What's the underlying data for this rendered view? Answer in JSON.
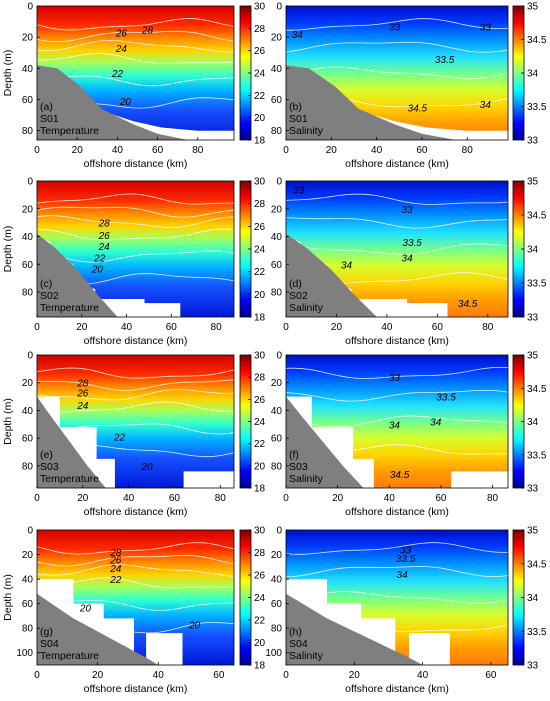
{
  "colormaps": {
    "jet": [
      "#00008f",
      "#0000ff",
      "#0080ff",
      "#00ffff",
      "#80ff80",
      "#ffff00",
      "#ff8000",
      "#ff0000",
      "#800000"
    ],
    "contour_line": "#ffffff",
    "bathymetry_fill": "#7f7f7f",
    "axis_color": "#000000"
  },
  "chart_data": [
    {
      "type": "heatmap",
      "id": "a",
      "label": "(a)",
      "station": "S01",
      "variable": "Temperature",
      "xlabel": "offshore distance (km)",
      "ylabel": "Depth (m)",
      "xlim": [
        0,
        98
      ],
      "ylim": [
        0,
        86
      ],
      "xticks": [
        "0",
        "20",
        "40",
        "60",
        "80"
      ],
      "xtick_values": [
        0,
        20,
        40,
        60,
        80
      ],
      "yticks": [
        "0",
        "20",
        "40",
        "60",
        "80"
      ],
      "ytick_values": [
        0,
        20,
        40,
        60,
        80
      ],
      "clim": [
        18,
        30
      ],
      "cbar_ticks": [
        "18",
        "20",
        "22",
        "24",
        "26",
        "28",
        "30"
      ],
      "cbar_tick_values": [
        18,
        20,
        22,
        24,
        26,
        28,
        30
      ],
      "contour_labels": [
        {
          "text": "28",
          "x": 55,
          "y": 15
        },
        {
          "text": "26",
          "x": 42,
          "y": 17
        },
        {
          "text": "24",
          "x": 42,
          "y": 27
        },
        {
          "text": "22",
          "x": 40,
          "y": 43
        },
        {
          "text": "20",
          "x": 44,
          "y": 61
        }
      ],
      "bathymetry": [
        [
          0,
          38
        ],
        [
          10,
          40
        ],
        [
          22,
          52
        ],
        [
          32,
          66
        ],
        [
          48,
          76
        ],
        [
          60,
          82
        ],
        [
          75,
          86
        ],
        [
          0,
          86
        ]
      ],
      "mask": [
        [
          0,
          38
        ],
        [
          10,
          40
        ],
        [
          10,
          45
        ],
        [
          22,
          52
        ],
        [
          22,
          58
        ],
        [
          34,
          68
        ],
        [
          48,
          74
        ],
        [
          62,
          78
        ],
        [
          80,
          80
        ],
        [
          98,
          80
        ],
        [
          98,
          86
        ],
        [
          0,
          86
        ]
      ]
    },
    {
      "type": "heatmap",
      "id": "b",
      "label": "(b)",
      "station": "S01",
      "variable": "Salinity",
      "xlabel": "offshore distance (km)",
      "ylabel": "",
      "xlim": [
        0,
        98
      ],
      "ylim": [
        0,
        86
      ],
      "xticks": [
        "0",
        "20",
        "40",
        "60",
        "80"
      ],
      "xtick_values": [
        0,
        20,
        40,
        60,
        80
      ],
      "yticks": [
        "0",
        "20",
        "40",
        "60",
        "80"
      ],
      "ytick_values": [
        0,
        20,
        40,
        60,
        80
      ],
      "clim": [
        33,
        35
      ],
      "cbar_ticks": [
        "33",
        "33.5",
        "34",
        "34.5",
        "35"
      ],
      "cbar_tick_values": [
        33,
        33.5,
        34,
        34.5,
        35
      ],
      "contour_labels": [
        {
          "text": "34",
          "x": 5,
          "y": 18
        },
        {
          "text": "33",
          "x": 48,
          "y": 13
        },
        {
          "text": "33.5",
          "x": 70,
          "y": 34
        },
        {
          "text": "34.5",
          "x": 58,
          "y": 65
        },
        {
          "text": "34",
          "x": 88,
          "y": 63
        },
        {
          "text": "33",
          "x": 88,
          "y": 13
        }
      ],
      "bathymetry": [
        [
          0,
          38
        ],
        [
          10,
          40
        ],
        [
          22,
          52
        ],
        [
          32,
          66
        ],
        [
          48,
          76
        ],
        [
          60,
          82
        ],
        [
          75,
          86
        ],
        [
          0,
          86
        ]
      ],
      "mask": [
        [
          0,
          38
        ],
        [
          10,
          40
        ],
        [
          10,
          45
        ],
        [
          22,
          52
        ],
        [
          22,
          58
        ],
        [
          34,
          68
        ],
        [
          48,
          74
        ],
        [
          62,
          78
        ],
        [
          80,
          80
        ],
        [
          98,
          80
        ],
        [
          98,
          86
        ],
        [
          0,
          86
        ]
      ]
    },
    {
      "type": "heatmap",
      "id": "c",
      "label": "(c)",
      "station": "S02",
      "variable": "Temperature",
      "xlabel": "offshore distance (km)",
      "ylabel": "Depth (m)",
      "xlim": [
        0,
        88
      ],
      "ylim": [
        0,
        98
      ],
      "xticks": [
        "0",
        "20",
        "40",
        "60",
        "80"
      ],
      "xtick_values": [
        0,
        20,
        40,
        60,
        80
      ],
      "yticks": [
        "0",
        "20",
        "40",
        "60",
        "80"
      ],
      "ytick_values": [
        0,
        20,
        40,
        60,
        80
      ],
      "clim": [
        18,
        30
      ],
      "cbar_ticks": [
        "18",
        "20",
        "22",
        "24",
        "26",
        "28",
        "30"
      ],
      "cbar_tick_values": [
        18,
        20,
        22,
        24,
        26,
        28,
        30
      ],
      "contour_labels": [
        {
          "text": "28",
          "x": 30,
          "y": 30
        },
        {
          "text": "26",
          "x": 30,
          "y": 39
        },
        {
          "text": "24",
          "x": 30,
          "y": 47
        },
        {
          "text": "22",
          "x": 28,
          "y": 55
        },
        {
          "text": "20",
          "x": 27,
          "y": 63
        }
      ],
      "bathymetry": [
        [
          0,
          38
        ],
        [
          8,
          48
        ],
        [
          18,
          64
        ],
        [
          26,
          80
        ],
        [
          36,
          98
        ],
        [
          0,
          98
        ]
      ],
      "mask": [
        [
          0,
          40
        ],
        [
          6,
          44
        ],
        [
          6,
          54
        ],
        [
          16,
          60
        ],
        [
          16,
          72
        ],
        [
          26,
          78
        ],
        [
          26,
          85
        ],
        [
          48,
          85
        ],
        [
          48,
          88
        ],
        [
          64,
          88
        ],
        [
          64,
          98
        ],
        [
          0,
          98
        ]
      ]
    },
    {
      "type": "heatmap",
      "id": "d",
      "label": "(d)",
      "station": "S02",
      "variable": "Salinity",
      "xlabel": "offshore distance (km)",
      "ylabel": "",
      "xlim": [
        0,
        88
      ],
      "ylim": [
        0,
        98
      ],
      "xticks": [
        "0",
        "20",
        "40",
        "60",
        "80"
      ],
      "xtick_values": [
        0,
        20,
        40,
        60,
        80
      ],
      "yticks": [
        "0",
        "20",
        "40",
        "60",
        "80"
      ],
      "ytick_values": [
        0,
        20,
        40,
        60,
        80
      ],
      "clim": [
        33,
        35
      ],
      "cbar_ticks": [
        "33",
        "33.5",
        "34",
        "34.5",
        "35"
      ],
      "cbar_tick_values": [
        33,
        33.5,
        34,
        34.5,
        35
      ],
      "contour_labels": [
        {
          "text": "33",
          "x": 48,
          "y": 20
        },
        {
          "text": "33",
          "x": 5,
          "y": 6
        },
        {
          "text": "33.5",
          "x": 50,
          "y": 44
        },
        {
          "text": "34",
          "x": 48,
          "y": 55
        },
        {
          "text": "34",
          "x": 24,
          "y": 60
        },
        {
          "text": "34.5",
          "x": 72,
          "y": 88
        }
      ],
      "bathymetry": [
        [
          0,
          38
        ],
        [
          8,
          48
        ],
        [
          18,
          64
        ],
        [
          26,
          80
        ],
        [
          36,
          98
        ],
        [
          0,
          98
        ]
      ],
      "mask": [
        [
          0,
          40
        ],
        [
          6,
          44
        ],
        [
          6,
          54
        ],
        [
          16,
          60
        ],
        [
          16,
          72
        ],
        [
          26,
          78
        ],
        [
          26,
          85
        ],
        [
          48,
          85
        ],
        [
          48,
          88
        ],
        [
          64,
          88
        ],
        [
          64,
          98
        ],
        [
          0,
          98
        ]
      ]
    },
    {
      "type": "heatmap",
      "id": "e",
      "label": "(e)",
      "station": "S03",
      "variable": "Temperature",
      "xlabel": "offshore distance (km)",
      "ylabel": "Depth (m)",
      "xlim": [
        0,
        86
      ],
      "ylim": [
        0,
        96
      ],
      "xticks": [
        "0",
        "20",
        "40",
        "60",
        "80"
      ],
      "xtick_values": [
        0,
        20,
        40,
        60,
        80
      ],
      "yticks": [
        "0",
        "20",
        "40",
        "60",
        "80"
      ],
      "ytick_values": [
        0,
        20,
        40,
        60,
        80
      ],
      "clim": [
        18,
        30
      ],
      "cbar_ticks": [
        "18",
        "20",
        "22",
        "24",
        "26",
        "28",
        "30"
      ],
      "cbar_tick_values": [
        18,
        20,
        22,
        24,
        26,
        28,
        30
      ],
      "contour_labels": [
        {
          "text": "28",
          "x": 20,
          "y": 20
        },
        {
          "text": "26",
          "x": 20,
          "y": 27
        },
        {
          "text": "24",
          "x": 20,
          "y": 36
        },
        {
          "text": "22",
          "x": 36,
          "y": 59
        },
        {
          "text": "20",
          "x": 48,
          "y": 80
        }
      ],
      "bathymetry": [
        [
          0,
          30
        ],
        [
          6,
          44
        ],
        [
          14,
          62
        ],
        [
          22,
          80
        ],
        [
          30,
          96
        ],
        [
          0,
          96
        ]
      ],
      "mask": [
        [
          0,
          30
        ],
        [
          10,
          30
        ],
        [
          10,
          52
        ],
        [
          26,
          52
        ],
        [
          26,
          75
        ],
        [
          34,
          75
        ],
        [
          34,
          96
        ],
        [
          0,
          96
        ]
      ],
      "mask2": [
        [
          64,
          84
        ],
        [
          86,
          84
        ],
        [
          86,
          96
        ],
        [
          64,
          96
        ]
      ]
    },
    {
      "type": "heatmap",
      "id": "f",
      "label": "(f)",
      "station": "S03",
      "variable": "Salinity",
      "xlabel": "offshore distance (km)",
      "ylabel": "",
      "xlim": [
        0,
        86
      ],
      "ylim": [
        0,
        96
      ],
      "xticks": [
        "0",
        "20",
        "40",
        "60",
        "80"
      ],
      "xtick_values": [
        0,
        20,
        40,
        60,
        80
      ],
      "yticks": [
        "0",
        "20",
        "40",
        "60",
        "80"
      ],
      "ytick_values": [
        0,
        20,
        40,
        60,
        80
      ],
      "clim": [
        33,
        35
      ],
      "cbar_ticks": [
        "33",
        "33.5",
        "34",
        "34.5",
        "35"
      ],
      "cbar_tick_values": [
        33,
        33.5,
        34,
        34.5,
        35
      ],
      "contour_labels": [
        {
          "text": "33",
          "x": 42,
          "y": 16
        },
        {
          "text": "33.5",
          "x": 62,
          "y": 30
        },
        {
          "text": "34",
          "x": 42,
          "y": 50
        },
        {
          "text": "34",
          "x": 58,
          "y": 48
        },
        {
          "text": "34.5",
          "x": 44,
          "y": 86
        }
      ],
      "bathymetry": [
        [
          0,
          30
        ],
        [
          6,
          44
        ],
        [
          14,
          62
        ],
        [
          22,
          80
        ],
        [
          30,
          96
        ],
        [
          0,
          96
        ]
      ],
      "mask": [
        [
          0,
          30
        ],
        [
          10,
          30
        ],
        [
          10,
          52
        ],
        [
          26,
          52
        ],
        [
          26,
          75
        ],
        [
          34,
          75
        ],
        [
          34,
          96
        ],
        [
          0,
          96
        ]
      ],
      "mask2": [
        [
          64,
          84
        ],
        [
          86,
          84
        ],
        [
          86,
          96
        ],
        [
          64,
          96
        ]
      ]
    },
    {
      "type": "heatmap",
      "id": "g",
      "label": "(g)",
      "station": "S04",
      "variable": "Temperature",
      "xlabel": "offshore distance (km)",
      "ylabel": "Depth (m)",
      "xlim": [
        0,
        65
      ],
      "ylim": [
        0,
        110
      ],
      "xticks": [
        "0",
        "20",
        "40",
        "60"
      ],
      "xtick_values": [
        0,
        20,
        40,
        60
      ],
      "yticks": [
        "0",
        "20",
        "40",
        "60",
        "80",
        "100"
      ],
      "ytick_values": [
        0,
        20,
        40,
        60,
        80,
        100
      ],
      "clim": [
        18,
        30
      ],
      "cbar_ticks": [
        "18",
        "20",
        "22",
        "24",
        "26",
        "28",
        "30"
      ],
      "cbar_tick_values": [
        18,
        20,
        22,
        24,
        26,
        28,
        30
      ],
      "contour_labels": [
        {
          "text": "28",
          "x": 26,
          "y": 18
        },
        {
          "text": "26",
          "x": 26,
          "y": 24
        },
        {
          "text": "24",
          "x": 26,
          "y": 31
        },
        {
          "text": "22",
          "x": 26,
          "y": 40
        },
        {
          "text": "20",
          "x": 16,
          "y": 63
        },
        {
          "text": "20",
          "x": 52,
          "y": 77
        }
      ],
      "bathymetry": [
        [
          0,
          52
        ],
        [
          12,
          72
        ],
        [
          24,
          88
        ],
        [
          36,
          104
        ],
        [
          40,
          110
        ],
        [
          0,
          110
        ]
      ],
      "mask": [
        [
          0,
          40
        ],
        [
          12,
          40
        ],
        [
          12,
          60
        ],
        [
          22,
          60
        ],
        [
          22,
          72
        ],
        [
          32,
          72
        ],
        [
          32,
          110
        ],
        [
          0,
          110
        ]
      ],
      "mask2": [
        [
          36,
          84
        ],
        [
          48,
          84
        ],
        [
          48,
          110
        ],
        [
          36,
          110
        ]
      ]
    },
    {
      "type": "heatmap",
      "id": "h",
      "label": "(h)",
      "station": "S04",
      "variable": "Salinity",
      "xlabel": "offshore distance (km)",
      "ylabel": "",
      "xlim": [
        0,
        65
      ],
      "ylim": [
        0,
        110
      ],
      "xticks": [
        "0",
        "20",
        "40",
        "60"
      ],
      "xtick_values": [
        0,
        20,
        40,
        60
      ],
      "yticks": [
        "0",
        "20",
        "40",
        "60",
        "80",
        "100"
      ],
      "ytick_values": [
        0,
        20,
        40,
        60,
        80,
        100
      ],
      "clim": [
        33,
        35
      ],
      "cbar_ticks": [
        "33",
        "33.5",
        "34",
        "34.5",
        "35"
      ],
      "cbar_tick_values": [
        33,
        33.5,
        34,
        34.5,
        35
      ],
      "contour_labels": [
        {
          "text": "33",
          "x": 35,
          "y": 16
        },
        {
          "text": "33.5",
          "x": 35,
          "y": 23
        },
        {
          "text": "34",
          "x": 34,
          "y": 36
        }
      ],
      "bathymetry": [
        [
          0,
          52
        ],
        [
          12,
          72
        ],
        [
          24,
          88
        ],
        [
          36,
          104
        ],
        [
          40,
          110
        ],
        [
          0,
          110
        ]
      ],
      "mask": [
        [
          0,
          40
        ],
        [
          12,
          40
        ],
        [
          12,
          60
        ],
        [
          22,
          60
        ],
        [
          22,
          72
        ],
        [
          32,
          72
        ],
        [
          32,
          110
        ],
        [
          0,
          110
        ]
      ],
      "mask2": [
        [
          36,
          84
        ],
        [
          48,
          84
        ],
        [
          48,
          110
        ],
        [
          36,
          110
        ]
      ]
    }
  ]
}
